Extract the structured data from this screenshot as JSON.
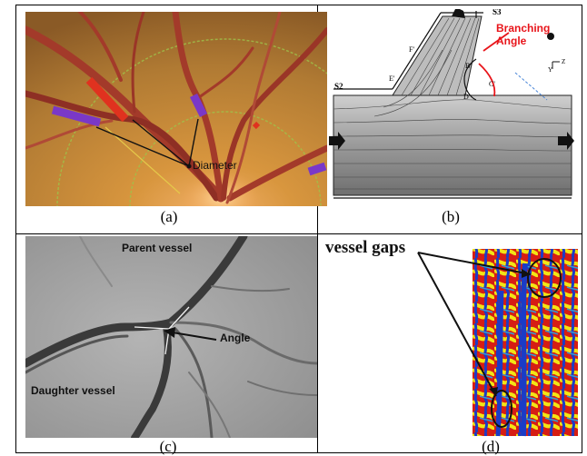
{
  "panels": {
    "a": {
      "caption": "(a)",
      "annotation": "Diameter"
    },
    "b": {
      "caption": "(b)",
      "annotation": "Branching Angle",
      "labels": {
        "s2": "S2",
        "s3": "S3",
        "e": "E'",
        "f": "F'",
        "b": "B'",
        "c": "C'",
        "d": "D'",
        "y": "Y",
        "z": "Z"
      }
    },
    "c": {
      "caption": "(c)",
      "parent": "Parent vessel",
      "daughter": "Daughter vessel",
      "angle": "Angle"
    },
    "d": {
      "caption": "(d)",
      "annotation": "vessel gaps"
    }
  },
  "colors": {
    "branching_angle": "#e8141a",
    "fundus_bg": "#c9893a",
    "vessel_marker": "#7a38c8",
    "heatmap_red": "#d61d14",
    "heatmap_yellow": "#f2e515",
    "heatmap_blue": "#1a3cc7"
  }
}
